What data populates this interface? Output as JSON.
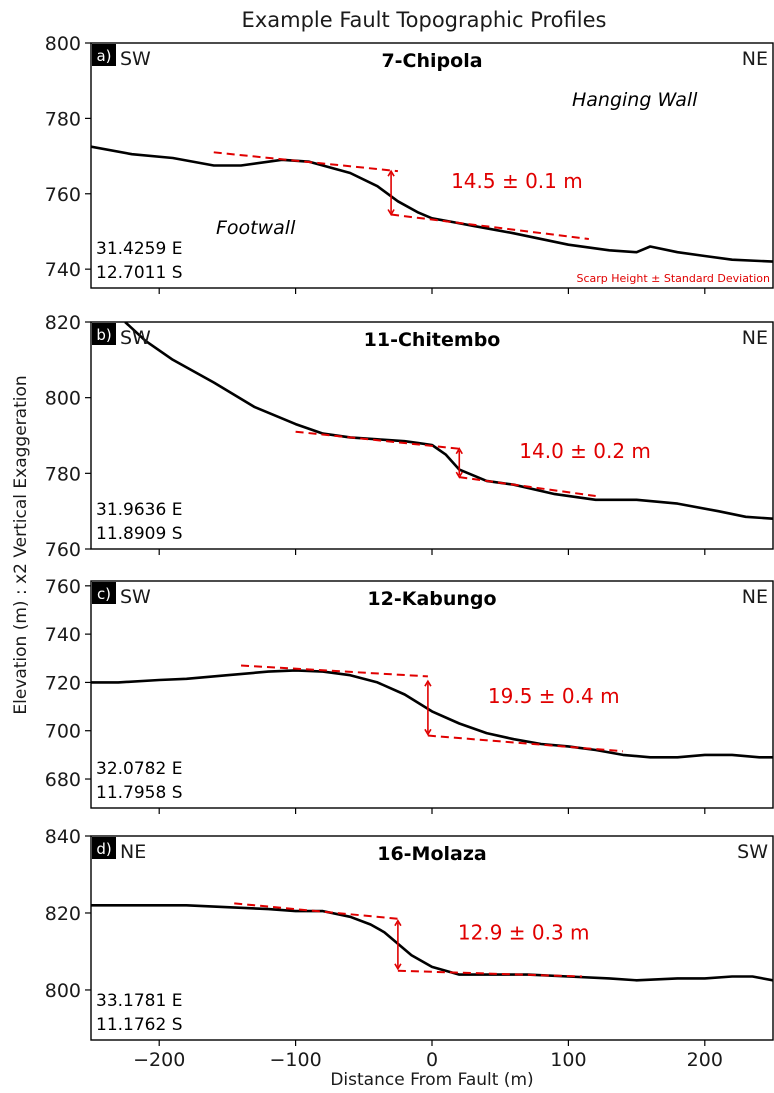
{
  "figure": {
    "title": "Example Fault Topographic Profiles",
    "ylabel": "Elevation (m) : x2 Vertical Exaggeration",
    "xlabel": "Distance From Fault (m)",
    "x_ticks": [
      -200,
      -100,
      0,
      100,
      200
    ],
    "x_tick_labels": [
      "−200",
      "−100",
      "0",
      "100",
      "200"
    ],
    "xlim": [
      -250,
      250
    ],
    "colors": {
      "profile": "#000000",
      "annotation": "#e00000",
      "panel_tag_bg": "#000000"
    }
  },
  "chart_data": [
    {
      "type": "line",
      "panel": "a)",
      "title": "7-Chipola",
      "left_dir": "SW",
      "right_dir": "NE",
      "ylim": [
        735,
        800
      ],
      "yticks": [
        740,
        760,
        780,
        800
      ],
      "coords": [
        "31.4259 E",
        "12.7011 S"
      ],
      "scarp_label": "14.5 ± 0.1 m",
      "extra_labels": {
        "hanging_wall": "Hanging Wall",
        "footwall": "Footwall",
        "legend_note": "Scarp Height ± Standard Deviation"
      },
      "profile": {
        "x": [
          -250,
          -220,
          -190,
          -160,
          -140,
          -110,
          -90,
          -60,
          -40,
          -25,
          -10,
          0,
          15,
          30,
          60,
          100,
          130,
          150,
          160,
          180,
          200,
          220,
          250
        ],
        "y": [
          772.5,
          770.5,
          769.5,
          767.5,
          767.5,
          769,
          768.5,
          765.5,
          762,
          758,
          755,
          753.5,
          752.5,
          751.5,
          749.5,
          746.5,
          745,
          744.5,
          746,
          744.5,
          743.5,
          742.5,
          742
        ]
      },
      "fit_lines": [
        {
          "x": [
            -160,
            -25
          ],
          "y": [
            771,
            766
          ]
        },
        {
          "x": [
            -30,
            115
          ],
          "y": [
            754.5,
            748
          ]
        }
      ],
      "scarp_arrow": {
        "x": -30,
        "y": [
          766,
          754.5
        ]
      }
    },
    {
      "type": "line",
      "panel": "b)",
      "title": "11-Chitembo",
      "left_dir": "SW",
      "right_dir": "NE",
      "ylim": [
        760,
        820
      ],
      "yticks": [
        760,
        780,
        800,
        820
      ],
      "coords": [
        "31.9636 E",
        "11.8909 S"
      ],
      "scarp_label": "14.0 ± 0.2 m",
      "profile": {
        "x": [
          -225,
          -210,
          -190,
          -160,
          -130,
          -100,
          -80,
          -60,
          -40,
          -20,
          -10,
          0,
          10,
          20,
          40,
          60,
          90,
          120,
          150,
          180,
          210,
          230,
          250
        ],
        "y": [
          820,
          815,
          810,
          804,
          797.5,
          793,
          790.5,
          789.5,
          789,
          788.5,
          788,
          787.5,
          785,
          781,
          778,
          777,
          774.5,
          773,
          773,
          772,
          770,
          768.5,
          768
        ]
      },
      "fit_lines": [
        {
          "x": [
            -100,
            20
          ],
          "y": [
            791,
            786.5
          ]
        },
        {
          "x": [
            20,
            120
          ],
          "y": [
            779,
            774
          ]
        }
      ],
      "scarp_arrow": {
        "x": 20,
        "y": [
          786.5,
          779
        ]
      }
    },
    {
      "type": "line",
      "panel": "c)",
      "title": "12-Kabungo",
      "left_dir": "SW",
      "right_dir": "NE",
      "ylim": [
        668,
        762
      ],
      "yticks": [
        680,
        700,
        720,
        740,
        760
      ],
      "coords": [
        "32.0782 E",
        "11.7958 S"
      ],
      "scarp_label": "19.5 ± 0.4 m",
      "profile": {
        "x": [
          -250,
          -230,
          -200,
          -180,
          -150,
          -120,
          -100,
          -80,
          -60,
          -40,
          -20,
          0,
          20,
          40,
          60,
          80,
          100,
          120,
          140,
          160,
          180,
          200,
          220,
          240,
          250
        ],
        "y": [
          720,
          720,
          721,
          721.5,
          723,
          724.5,
          725,
          724.5,
          723,
          720,
          715,
          708,
          703,
          699,
          696.5,
          694.5,
          693.5,
          692,
          690,
          689,
          689,
          690,
          690,
          689,
          689
        ]
      },
      "fit_lines": [
        {
          "x": [
            -140,
            -3
          ],
          "y": [
            727,
            722.5
          ]
        },
        {
          "x": [
            -3,
            140
          ],
          "y": [
            698,
            691.5
          ]
        }
      ],
      "scarp_arrow": {
        "x": -3,
        "y": [
          720.5,
          698.5
        ]
      }
    },
    {
      "type": "line",
      "panel": "d)",
      "title": "16-Molaza",
      "left_dir": "NE",
      "right_dir": "SW",
      "ylim": [
        787,
        840
      ],
      "yticks": [
        800,
        820,
        840
      ],
      "coords": [
        "33.1781 E",
        "11.1762 S"
      ],
      "scarp_label": "12.9 ± 0.3 m",
      "profile": {
        "x": [
          -250,
          -220,
          -180,
          -150,
          -120,
          -100,
          -80,
          -60,
          -45,
          -35,
          -25,
          -15,
          0,
          20,
          40,
          70,
          100,
          130,
          150,
          180,
          200,
          220,
          235,
          250
        ],
        "y": [
          822,
          822,
          822,
          821.5,
          821,
          820.5,
          820.5,
          819,
          817,
          815,
          812,
          809,
          806,
          804,
          804,
          804,
          803.5,
          803,
          802.5,
          803,
          803,
          803.5,
          803.5,
          802.5
        ]
      },
      "fit_lines": [
        {
          "x": [
            -145,
            -25
          ],
          "y": [
            822.5,
            818.5
          ]
        },
        {
          "x": [
            -25,
            110
          ],
          "y": [
            805,
            803.5
          ]
        }
      ],
      "scarp_arrow": {
        "x": -25,
        "y": [
          818,
          805.5
        ]
      }
    }
  ]
}
